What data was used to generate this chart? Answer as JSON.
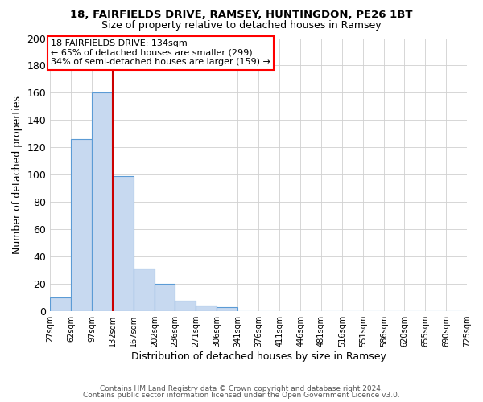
{
  "title1": "18, FAIRFIELDS DRIVE, RAMSEY, HUNTINGDON, PE26 1BT",
  "title2": "Size of property relative to detached houses in Ramsey",
  "xlabel": "Distribution of detached houses by size in Ramsey",
  "ylabel": "Number of detached properties",
  "bar_edges": [
    27,
    62,
    97,
    132,
    167,
    202,
    236,
    271,
    306,
    341,
    376,
    411,
    446,
    481,
    516,
    551,
    586,
    620,
    655,
    690,
    725
  ],
  "bar_heights": [
    10,
    126,
    160,
    99,
    31,
    20,
    8,
    4,
    3,
    0,
    0,
    0,
    0,
    0,
    0,
    0,
    0,
    0,
    0,
    0
  ],
  "bar_color": "#c7d9f0",
  "bar_edgecolor": "#5b9bd5",
  "vline_x": 132,
  "vline_color": "#cc0000",
  "ylim": [
    0,
    200
  ],
  "yticks": [
    0,
    20,
    40,
    60,
    80,
    100,
    120,
    140,
    160,
    180,
    200
  ],
  "annotation_title": "18 FAIRFIELDS DRIVE: 134sqm",
  "annotation_line1": "← 65% of detached houses are smaller (299)",
  "annotation_line2": "34% of semi-detached houses are larger (159) →",
  "footer1": "Contains HM Land Registry data © Crown copyright and database right 2024.",
  "footer2": "Contains public sector information licensed under the Open Government Licence v3.0.",
  "tick_labels": [
    "27sqm",
    "62sqm",
    "97sqm",
    "132sqm",
    "167sqm",
    "202sqm",
    "236sqm",
    "271sqm",
    "306sqm",
    "341sqm",
    "376sqm",
    "411sqm",
    "446sqm",
    "481sqm",
    "516sqm",
    "551sqm",
    "586sqm",
    "620sqm",
    "655sqm",
    "690sqm",
    "725sqm"
  ],
  "background_color": "#ffffff",
  "grid_color": "#d0d0d0"
}
